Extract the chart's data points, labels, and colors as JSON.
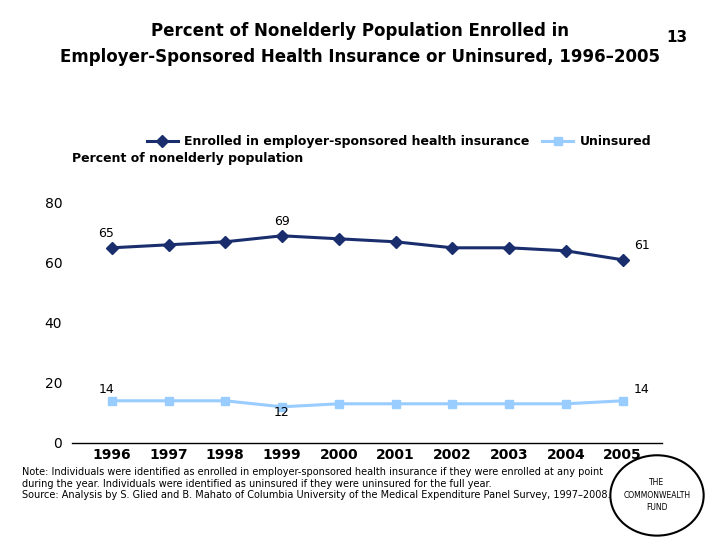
{
  "title_line1": "Percent of Nonelderly Population Enrolled in",
  "title_line2": "Employer-Sponsored Health Insurance or Uninsured, 1996–2005",
  "page_number": "13",
  "ylabel": "Percent of nonelderly population",
  "years": [
    1996,
    1997,
    1998,
    1999,
    2000,
    2001,
    2002,
    2003,
    2004,
    2005
  ],
  "enrolled": [
    65,
    66,
    67,
    69,
    68,
    67,
    65,
    65,
    64,
    61
  ],
  "uninsured": [
    14,
    14,
    14,
    12,
    13,
    13,
    13,
    13,
    13,
    14
  ],
  "enrolled_color": "#1a2e6e",
  "uninsured_color": "#99ccff",
  "enrolled_label": "Enrolled in employer-sponsored health insurance",
  "uninsured_label": "Uninsured",
  "ylim": [
    0,
    90
  ],
  "yticks": [
    0,
    20,
    40,
    60,
    80
  ],
  "bg_color": "#ffffff",
  "note_text": "Note: Individuals were identified as enrolled in employer-sponsored health insurance if they were enrolled at any point\nduring the year. Individuals were identified as uninsured if they were uninsured for the full year.\nSource: Analysis by S. Glied and B. Mahato of Columbia University of the Medical Expenditure Panel Survey, 1997–2008.",
  "commonwealth_text": "THE\nCOMMONWEALTH\nFUND"
}
